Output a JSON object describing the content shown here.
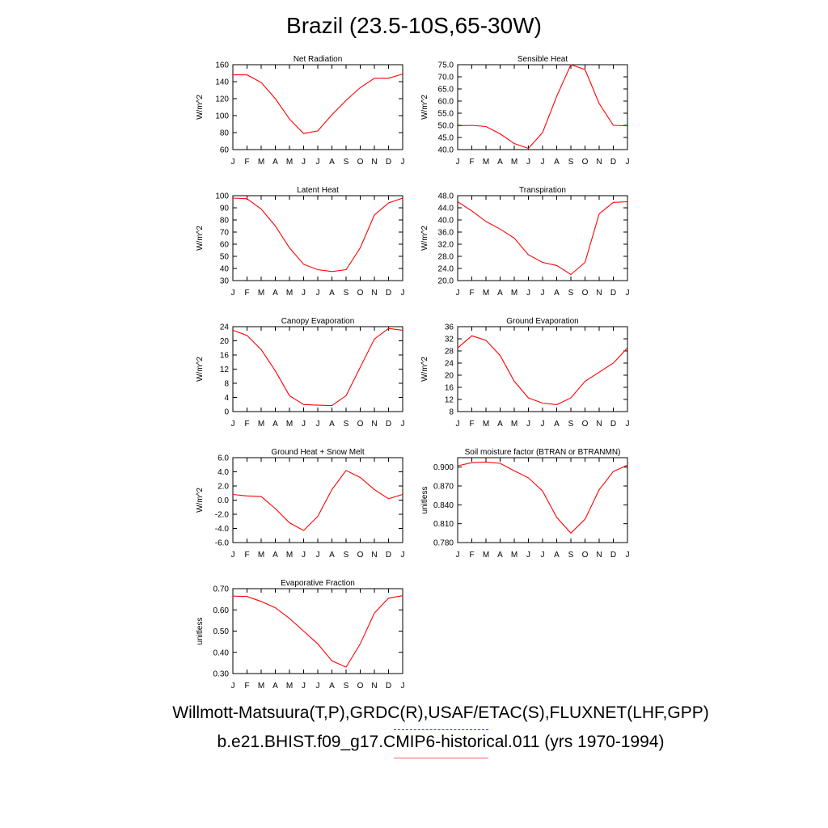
{
  "title": "Brazil (23.5-10S,65-30W)",
  "footer": {
    "observations": "Willmott-Matsuura(T,P),GRDC(R),USAF/ETAC(S),FLUXNET(LHF,GPP)",
    "model": "b.e21.BHIST.f09_g17.CMIP6-historical.011 (yrs 1970-1994)"
  },
  "colors": {
    "line": "#ff0000",
    "legend_obs": "#3333ff",
    "legend_model": "#ff6666"
  },
  "chart_data": [
    {
      "type": "line",
      "title": "Net Radiation",
      "ylabel": "W/m^2",
      "x": [
        "J",
        "F",
        "M",
        "A",
        "M",
        "J",
        "J",
        "A",
        "S",
        "O",
        "N",
        "D",
        "J"
      ],
      "ylim": [
        60,
        160
      ],
      "yticks": [
        60,
        80,
        100,
        120,
        140,
        160
      ],
      "ytick_labels": [
        "60",
        "80",
        "100",
        "120",
        "140",
        "160"
      ],
      "values": [
        148,
        148,
        139,
        120,
        96,
        79,
        82,
        101,
        118,
        133,
        144,
        144,
        149
      ]
    },
    {
      "type": "line",
      "title": "Sensible Heat",
      "ylabel": "W/m^2",
      "x": [
        "J",
        "F",
        "M",
        "A",
        "M",
        "J",
        "J",
        "A",
        "S",
        "O",
        "N",
        "D",
        "J"
      ],
      "ylim": [
        40,
        75
      ],
      "yticks": [
        40,
        45,
        50,
        55,
        60,
        65,
        70,
        75
      ],
      "ytick_labels": [
        "40.0",
        "45.0",
        "50.0",
        "55.0",
        "60.0",
        "65.0",
        "70.0",
        "75.0"
      ],
      "values": [
        49.8,
        50,
        49.5,
        46.5,
        42.5,
        40.5,
        47,
        62,
        75,
        73,
        59,
        50,
        49.8
      ]
    },
    {
      "type": "line",
      "title": "Latent Heat",
      "ylabel": "W/m^2",
      "x": [
        "J",
        "F",
        "M",
        "A",
        "M",
        "J",
        "J",
        "A",
        "S",
        "O",
        "N",
        "D",
        "J"
      ],
      "ylim": [
        30,
        100
      ],
      "yticks": [
        30,
        40,
        50,
        60,
        70,
        80,
        90,
        100
      ],
      "ytick_labels": [
        "30",
        "40",
        "50",
        "60",
        "70",
        "80",
        "90",
        "100"
      ],
      "values": [
        98,
        97.5,
        89,
        75,
        57,
        43.5,
        39,
        37.5,
        39,
        57,
        84,
        94,
        98
      ]
    },
    {
      "type": "line",
      "title": "Transpiration",
      "ylabel": "W/m^2",
      "x": [
        "J",
        "F",
        "M",
        "A",
        "M",
        "J",
        "J",
        "A",
        "S",
        "O",
        "N",
        "D",
        "J"
      ],
      "ylim": [
        20,
        48
      ],
      "yticks": [
        20,
        24,
        28,
        32,
        36,
        40,
        44,
        48
      ],
      "ytick_labels": [
        "20.0",
        "24.0",
        "28.0",
        "32.0",
        "36.0",
        "40.0",
        "44.0",
        "48.0"
      ],
      "values": [
        46,
        43,
        39.5,
        37,
        34,
        28.5,
        26,
        25,
        22,
        26,
        42,
        45.8,
        46
      ]
    },
    {
      "type": "line",
      "title": "Canopy Evaporation",
      "ylabel": "W/m^2",
      "x": [
        "J",
        "F",
        "M",
        "A",
        "M",
        "J",
        "J",
        "A",
        "S",
        "O",
        "N",
        "D",
        "J"
      ],
      "ylim": [
        0,
        24
      ],
      "yticks": [
        0,
        4,
        8,
        12,
        16,
        20,
        24
      ],
      "ytick_labels": [
        "0",
        "4",
        "8",
        "12",
        "16",
        "20",
        "24"
      ],
      "values": [
        23,
        21.5,
        17.5,
        11.5,
        4.5,
        2,
        1.8,
        1.7,
        4.5,
        12.5,
        20.5,
        23.5,
        23
      ]
    },
    {
      "type": "line",
      "title": "Ground Evaporation",
      "ylabel": "W/m^2",
      "x": [
        "J",
        "F",
        "M",
        "A",
        "M",
        "J",
        "J",
        "A",
        "S",
        "O",
        "N",
        "D",
        "J"
      ],
      "ylim": [
        8,
        36
      ],
      "yticks": [
        8,
        12,
        16,
        20,
        24,
        28,
        32,
        36
      ],
      "ytick_labels": [
        "8",
        "12",
        "16",
        "20",
        "24",
        "28",
        "32",
        "36"
      ],
      "values": [
        29,
        33,
        31.5,
        26.5,
        18,
        12.5,
        10.8,
        10.3,
        12.5,
        18,
        21,
        24,
        29
      ]
    },
    {
      "type": "line",
      "title": "Ground Heat + Snow Melt",
      "ylabel": "W/m^2",
      "x": [
        "J",
        "F",
        "M",
        "A",
        "M",
        "J",
        "J",
        "A",
        "S",
        "O",
        "N",
        "D",
        "J"
      ],
      "ylim": [
        -6,
        6
      ],
      "yticks": [
        -6,
        -4,
        -2,
        0,
        2,
        4,
        6
      ],
      "ytick_labels": [
        "-6.0",
        "-4.0",
        "-2.0",
        "0.0",
        "2.0",
        "4.0",
        "6.0"
      ],
      "values": [
        0.8,
        0.6,
        0.5,
        -1.2,
        -3.2,
        -4.3,
        -2.3,
        1.5,
        4.2,
        3.2,
        1.5,
        0.2,
        0.8
      ]
    },
    {
      "type": "line",
      "title": "Soil moisture factor (BTRAN or BTRANMN)",
      "ylabel": "unitless",
      "x": [
        "J",
        "F",
        "M",
        "A",
        "M",
        "J",
        "J",
        "A",
        "S",
        "O",
        "N",
        "D",
        "J"
      ],
      "ylim": [
        0.78,
        0.915
      ],
      "yticks": [
        0.78,
        0.81,
        0.84,
        0.87,
        0.9
      ],
      "ytick_labels": [
        "0.780",
        "0.810",
        "0.840",
        "0.870",
        "0.900"
      ],
      "values": [
        0.902,
        0.907,
        0.908,
        0.906,
        0.894,
        0.883,
        0.862,
        0.82,
        0.795,
        0.817,
        0.864,
        0.893,
        0.903
      ]
    },
    {
      "type": "line",
      "title": "Evaporative Fraction",
      "ylabel": "unitless",
      "x": [
        "J",
        "F",
        "M",
        "A",
        "M",
        "J",
        "J",
        "A",
        "S",
        "O",
        "N",
        "D",
        "J"
      ],
      "ylim": [
        0.3,
        0.7
      ],
      "yticks": [
        0.3,
        0.4,
        0.5,
        0.6,
        0.7
      ],
      "ytick_labels": [
        "0.30",
        "0.40",
        "0.50",
        "0.60",
        "0.70"
      ],
      "values": [
        0.665,
        0.663,
        0.64,
        0.61,
        0.56,
        0.5,
        0.44,
        0.36,
        0.33,
        0.44,
        0.585,
        0.655,
        0.667
      ]
    }
  ]
}
